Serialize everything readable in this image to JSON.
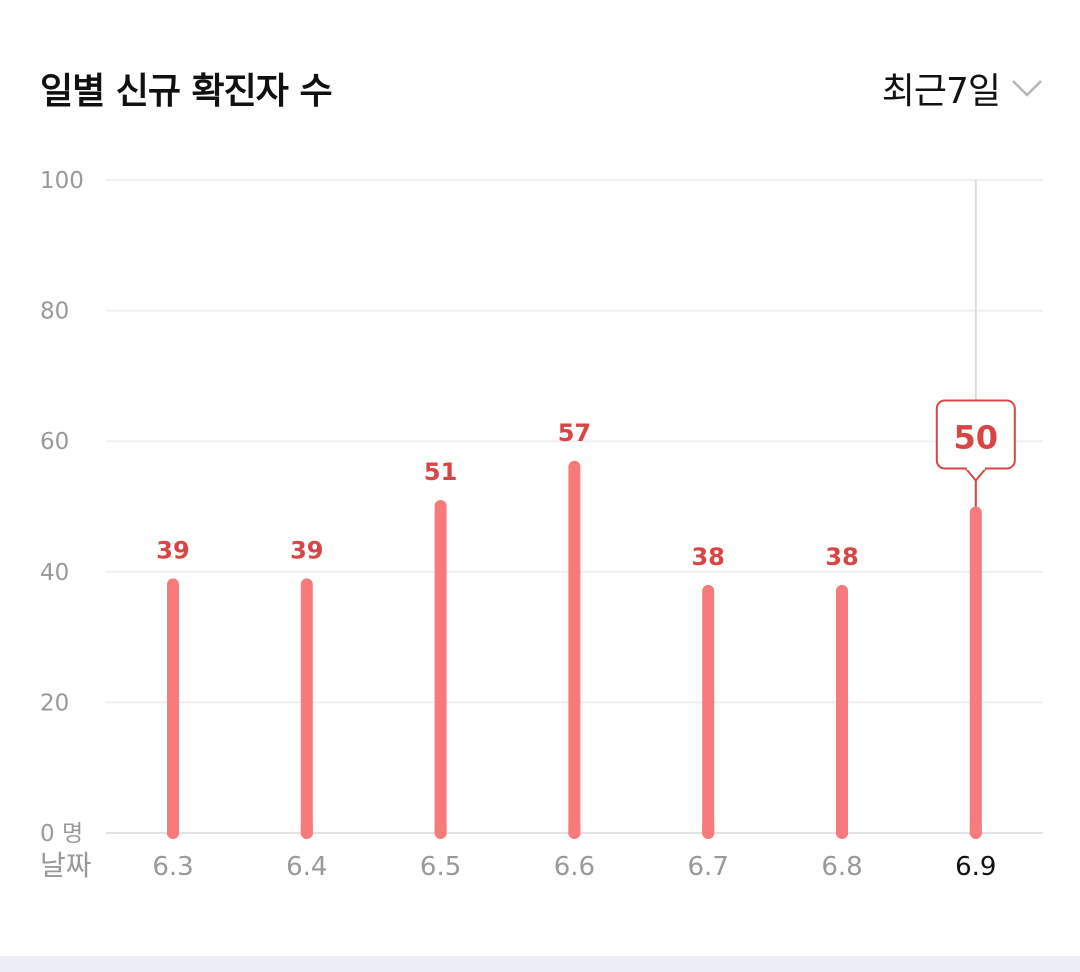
{
  "header": {
    "title": "일별 신규 확진자 수",
    "period_label": "최근7일"
  },
  "chart_data": {
    "type": "bar",
    "title": "일별 신규 확진자 수",
    "xlabel": "날짜",
    "ylabel": "",
    "y_unit": "명",
    "categories": [
      "6.3",
      "6.4",
      "6.5",
      "6.6",
      "6.7",
      "6.8",
      "6.9"
    ],
    "values": [
      39,
      39,
      51,
      57,
      38,
      38,
      50
    ],
    "ylim": [
      0,
      100
    ],
    "yticks": [
      0,
      20,
      40,
      60,
      80,
      100
    ],
    "highlighted_category": "6.9",
    "grid": true,
    "legend": "none",
    "bar_color": "#f77b7b",
    "label_color": "#d94545",
    "axis_text_color": "#999999",
    "highlight_text_color": "#111111"
  }
}
